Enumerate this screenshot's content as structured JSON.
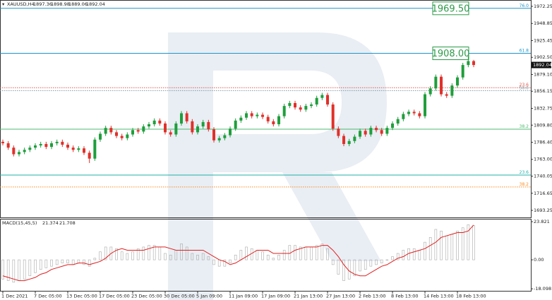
{
  "header": {
    "symbol": "XAUUSD,H4"
  },
  "chart_data": [
    {
      "type": "candlestick",
      "categories": [
        "1 Dec 2021",
        null,
        null,
        null,
        null,
        null,
        "7 Dec 05:00",
        null,
        null,
        null,
        null,
        null,
        "13 Dec 05:00",
        null,
        null,
        null,
        null,
        null,
        "17 Dec 05:00",
        null,
        null,
        null,
        null,
        null,
        "23 Dec 05:00",
        null,
        null,
        null,
        null,
        null,
        "30 Dec 05:00",
        null,
        null,
        null,
        null,
        null,
        "5 Jan 09:00",
        null,
        null,
        null,
        null,
        null,
        "11 Jan 09:00",
        null,
        null,
        null,
        null,
        null,
        "17 Jan 09:00",
        null,
        null,
        null,
        null,
        null,
        "21 Jan 13:00",
        null,
        null,
        null,
        null,
        null,
        "27 Jan 13:00",
        null,
        null,
        null,
        null,
        null,
        "2 Feb 13:00",
        null,
        null,
        null,
        null,
        null,
        "8 Feb 13:00",
        null,
        null,
        null,
        null,
        null,
        "14 Feb 13:00",
        null,
        null,
        null,
        null,
        null,
        "18 Feb 13:00",
        null,
        null,
        null
      ],
      "open": [
        1787,
        1785,
        1779,
        1770,
        1773,
        1776,
        1779,
        1782,
        1784,
        1780,
        1785,
        1787,
        1783,
        1779,
        1776,
        1778,
        1772,
        1764,
        1790,
        1798,
        1806,
        1800,
        1795,
        1792,
        1797,
        1803,
        1801,
        1808,
        1811,
        1816,
        1812,
        1800,
        1797,
        1812,
        1826,
        1815,
        1800,
        1808,
        1814,
        1804,
        1789,
        1792,
        1796,
        1805,
        1816,
        1820,
        1826,
        1822,
        1824,
        1821,
        1815,
        1811,
        1822,
        1836,
        1840,
        1834,
        1831,
        1836,
        1838,
        1847,
        1851,
        1838,
        1805,
        1795,
        1784,
        1788,
        1794,
        1802,
        1797,
        1806,
        1803,
        1798,
        1806,
        1812,
        1818,
        1825,
        1828,
        1826,
        1822,
        1852,
        1860,
        1876,
        1852,
        1850,
        1864,
        1875,
        1892,
        1897.36
      ],
      "high": [
        1790,
        1788,
        1782,
        1776,
        1779,
        1782,
        1785,
        1787,
        1787,
        1788,
        1790,
        1790,
        1786,
        1782,
        1781,
        1781,
        1775,
        1793,
        1801,
        1809,
        1809,
        1803,
        1798,
        1800,
        1806,
        1806,
        1811,
        1814,
        1819,
        1819,
        1815,
        1803,
        1815,
        1829,
        1829,
        1818,
        1811,
        1817,
        1817,
        1807,
        1795,
        1799,
        1808,
        1819,
        1823,
        1829,
        1829,
        1827,
        1827,
        1824,
        1818,
        1825,
        1839,
        1843,
        1843,
        1837,
        1839,
        1841,
        1850,
        1854,
        1854,
        1841,
        1808,
        1798,
        1791,
        1797,
        1805,
        1805,
        1809,
        1809,
        1806,
        1809,
        1815,
        1821,
        1828,
        1831,
        1831,
        1829,
        1855,
        1863,
        1879,
        1879,
        1855,
        1867,
        1878,
        1895,
        1904,
        1898.98
      ],
      "low": [
        1782,
        1776,
        1767,
        1767,
        1770,
        1773,
        1776,
        1779,
        1777,
        1777,
        1782,
        1780,
        1776,
        1773,
        1773,
        1769,
        1758,
        1761,
        1787,
        1795,
        1797,
        1792,
        1789,
        1789,
        1794,
        1798,
        1798,
        1805,
        1808,
        1809,
        1797,
        1794,
        1794,
        1809,
        1812,
        1797,
        1797,
        1805,
        1801,
        1786,
        1786,
        1789,
        1793,
        1802,
        1813,
        1817,
        1819,
        1819,
        1818,
        1812,
        1808,
        1808,
        1819,
        1833,
        1831,
        1828,
        1828,
        1833,
        1835,
        1844,
        1835,
        1802,
        1792,
        1781,
        1781,
        1785,
        1791,
        1794,
        1794,
        1800,
        1795,
        1795,
        1803,
        1809,
        1815,
        1822,
        1823,
        1819,
        1819,
        1849,
        1857,
        1849,
        1847,
        1847,
        1861,
        1872,
        1889,
        1889.06
      ],
      "close": [
        1785,
        1779,
        1770,
        1773,
        1776,
        1779,
        1782,
        1784,
        1780,
        1785,
        1787,
        1783,
        1779,
        1776,
        1778,
        1772,
        1764,
        1790,
        1798,
        1806,
        1800,
        1795,
        1792,
        1797,
        1803,
        1801,
        1808,
        1811,
        1816,
        1812,
        1800,
        1797,
        1812,
        1826,
        1815,
        1800,
        1808,
        1814,
        1804,
        1789,
        1792,
        1796,
        1805,
        1816,
        1820,
        1826,
        1822,
        1824,
        1821,
        1815,
        1811,
        1822,
        1836,
        1840,
        1834,
        1831,
        1836,
        1838,
        1847,
        1851,
        1838,
        1805,
        1795,
        1784,
        1788,
        1794,
        1802,
        1797,
        1806,
        1803,
        1798,
        1806,
        1812,
        1818,
        1825,
        1828,
        1826,
        1822,
        1852,
        1860,
        1876,
        1852,
        1850,
        1864,
        1875,
        1892,
        1897.36,
        1892.04
      ],
      "up_color": "#1f9e3c",
      "down_color": "#e0302a",
      "ylim": [
        1683.6,
        1980.9
      ],
      "yticks": [
        1972.25,
        1948.85,
        1925.45,
        {
          "value": 1902.5,
          "label": "1902.50"
        },
        {
          "value": 1879.1,
          "label": "1879.10"
        },
        1856.15,
        1832.75,
        {
          "value": 1809.8,
          "label": "1809.80"
        },
        {
          "value": 1786.4,
          "label": "1786.40"
        },
        {
          "value": 1763,
          "label": "1763.00"
        },
        1740.05,
        1716.65,
        1693.25
      ],
      "levels": [
        {
          "name": "76.0",
          "price": {
            "value": 1969.5,
            "label": "1969.50"
          },
          "color": "#1f94c8",
          "dash": false,
          "box": true
        },
        {
          "name": "61.8",
          "price": {
            "value": 1908,
            "label": "1908.00"
          },
          "color": "#1f94c8",
          "dash": false,
          "box": true
        },
        {
          "name": "23.6",
          "price": 1861,
          "color": "#e05a50",
          "dash": true,
          "box": false
        },
        {
          "name": "50.0",
          "price": 1857,
          "color": "#7f9aa6",
          "dash": true,
          "box": false
        },
        {
          "name": "38.2",
          "price": 1804.3,
          "color": "#4cb872",
          "dash": false,
          "box": false
        },
        {
          "name": "23.6",
          "price": 1741.5,
          "color": "#20b0a8",
          "dash": false,
          "box": false
        },
        {
          "name": "38.2",
          "price": 1725.2,
          "color": "#ff8a1c",
          "dash": true,
          "box": false
        }
      ]
    },
    {
      "type": "macd",
      "title": "MACD(15,45,5)",
      "series": [
        {
          "style": "histogram",
          "color": "#a9a9a9",
          "values": [
            -12,
            -13,
            -14,
            -13,
            -12,
            -10,
            -8,
            -6,
            -5,
            -4,
            -3,
            -2,
            -2,
            -3,
            -2,
            -3,
            -4,
            1,
            5,
            8,
            8,
            7,
            5,
            4,
            5,
            7,
            8,
            9,
            9,
            8,
            4,
            3,
            6,
            10,
            8,
            4,
            3,
            4,
            2,
            -3,
            -4,
            -4,
            -2,
            3,
            6,
            8,
            7,
            6,
            5,
            3,
            1,
            3,
            6,
            9,
            9,
            8,
            8,
            8,
            9,
            10,
            7,
            -3,
            -9,
            -13,
            -12,
            -10,
            -7,
            -6,
            -4,
            -3,
            -2,
            0,
            2,
            4,
            6,
            7,
            7,
            6,
            11,
            14,
            19,
            18,
            15,
            16,
            18,
            20,
            21.9,
            21.374
          ]
        },
        {
          "style": "line",
          "color": "#e02020",
          "values": [
            -10,
            -11,
            -12,
            -13,
            -13,
            -12,
            -11,
            -9,
            -8,
            -6,
            -5,
            -4,
            -3,
            -3,
            -2,
            -2,
            -3,
            -2,
            -1,
            1,
            4,
            6,
            7,
            6,
            6,
            6,
            6,
            7,
            8,
            8,
            8,
            7,
            6,
            6,
            6,
            6,
            6,
            6,
            4,
            2,
            0,
            -1,
            -3,
            -2,
            0,
            2,
            4,
            6,
            6,
            6,
            4,
            4,
            4,
            4,
            6,
            7,
            8,
            8,
            8,
            9,
            9,
            6,
            2,
            -3,
            -7,
            -9,
            -10,
            -10,
            -8,
            -6,
            -4,
            -3,
            -1,
            1,
            2,
            4,
            5,
            6,
            7,
            9,
            11,
            14,
            15,
            16,
            17,
            17,
            18,
            21.708
          ]
        }
      ],
      "ylim": [
        -19.8,
        25.6
      ],
      "yticks": [
        23.821,
        {
          "value": 0,
          "label": "0.00"
        },
        -18.098
      ]
    }
  ]
}
